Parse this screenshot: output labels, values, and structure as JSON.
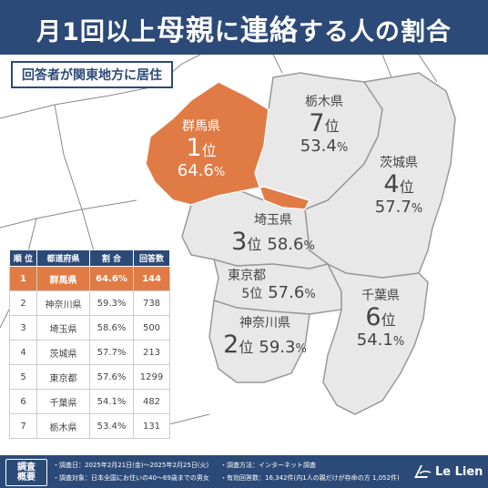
{
  "header": {
    "title_pre": "月1回以上",
    "title_big1": "母親",
    "title_mid": "に",
    "title_big2": "連絡",
    "title_post": "する人の割合"
  },
  "respondent_note": "回答者が関東地方に居住",
  "map": {
    "unit_rank": "位",
    "unit_pct": "%",
    "regions": [
      {
        "name": "群馬県",
        "rank": "1",
        "pct": "64.6",
        "highlight": true
      },
      {
        "name": "栃木県",
        "rank": "7",
        "pct": "53.4"
      },
      {
        "name": "茨城県",
        "rank": "4",
        "pct": "57.7"
      },
      {
        "name": "埼玉県",
        "rank": "3",
        "pct": "58.6"
      },
      {
        "name": "東京都",
        "rank": "5",
        "pct": "57.6"
      },
      {
        "name": "神奈川県",
        "rank": "2",
        "pct": "59.3"
      },
      {
        "name": "千葉県",
        "rank": "6",
        "pct": "54.1"
      }
    ],
    "colors": {
      "highlight": "#e07b45",
      "normal": "#e8e8e8",
      "border": "#999999",
      "line": "#888888"
    }
  },
  "ranking_table": {
    "headers": [
      "順 位",
      "都道府県",
      "割 合",
      "回答数"
    ],
    "rows": [
      [
        "1",
        "群馬県",
        "64.6%",
        "144"
      ],
      [
        "2",
        "神奈川県",
        "59.3%",
        "738"
      ],
      [
        "3",
        "埼玉県",
        "58.6%",
        "500"
      ],
      [
        "4",
        "茨城県",
        "57.7%",
        "213"
      ],
      [
        "5",
        "東京都",
        "57.6%",
        "1299"
      ],
      [
        "6",
        "千葉県",
        "54.1%",
        "482"
      ],
      [
        "7",
        "栃木県",
        "53.4%",
        "131"
      ]
    ]
  },
  "footer": {
    "badge_line1": "調査",
    "badge_line2": "概要",
    "period": "・調査日：2025年2月21日(金)～2025年2月25日(火)",
    "method": "・調査方法：インターネット調査",
    "target": "・調査対象：日本全国にお住いの40～69歳までの男女",
    "responses": "・有効回答数：16,342件(内1人の親だけが存命の方 1,052件)",
    "logo": "Le Lien"
  },
  "theme": {
    "navy": "#2c4a78",
    "orange": "#e07b45"
  }
}
